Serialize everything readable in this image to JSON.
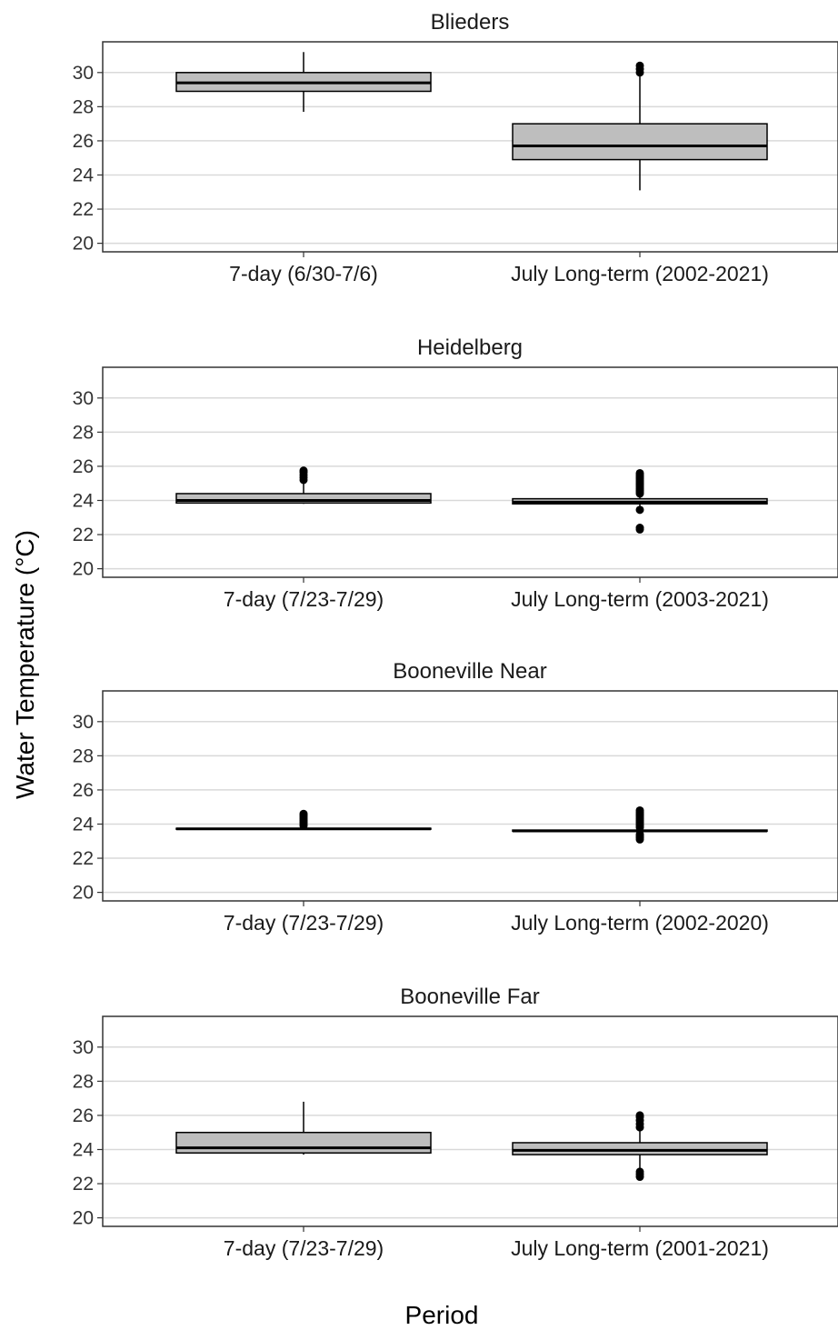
{
  "chart_data": {
    "type": "box",
    "ylabel": "Water Temperature (°C)",
    "xlabel": "Period",
    "ylim": [
      19.5,
      31.8
    ],
    "yticks": [
      20,
      22,
      24,
      26,
      28,
      30
    ],
    "grid": "horizontal",
    "box_fill": "#bebebe",
    "panels": [
      {
        "title": "Blieders",
        "categories": [
          "7-day (6/30-7/6)",
          "July Long-term (2002-2021)"
        ],
        "boxes": [
          {
            "whisker_low": 27.7,
            "q1": 28.9,
            "median": 29.4,
            "q3": 30.0,
            "whisker_high": 31.2,
            "outliers": []
          },
          {
            "whisker_low": 23.1,
            "q1": 24.9,
            "median": 25.7,
            "q3": 27.0,
            "whisker_high": 29.9,
            "outliers": [
              30.0,
              30.2,
              30.4
            ]
          }
        ]
      },
      {
        "title": "Heidelberg",
        "categories": [
          "7-day (7/23-7/29)",
          "July Long-term (2003-2021)"
        ],
        "boxes": [
          {
            "whisker_low": 23.8,
            "q1": 23.85,
            "median": 24.0,
            "q3": 24.4,
            "whisker_high": 25.0,
            "outliers": [
              25.2,
              25.35,
              25.5,
              25.65,
              25.75
            ]
          },
          {
            "whisker_low": 23.6,
            "q1": 23.8,
            "median": 23.9,
            "q3": 24.1,
            "whisker_high": 24.3,
            "outliers": [
              24.4,
              24.5,
              24.6,
              24.7,
              24.8,
              24.9,
              25.0,
              25.1,
              25.2,
              25.3,
              25.4,
              25.5,
              25.6,
              23.45,
              22.3,
              22.4
            ]
          }
        ]
      },
      {
        "title": "Booneville Near",
        "categories": [
          "7-day (7/23-7/29)",
          "July Long-term (2002-2020)"
        ],
        "boxes": [
          {
            "whisker_low": 23.7,
            "q1": 23.7,
            "median": 23.72,
            "q3": 23.75,
            "whisker_high": 23.8,
            "outliers": [
              23.9,
              24.0,
              24.1,
              24.2,
              24.3,
              24.4,
              24.5,
              24.6
            ]
          },
          {
            "whisker_low": 23.5,
            "q1": 23.58,
            "median": 23.6,
            "q3": 23.65,
            "whisker_high": 23.7,
            "outliers": [
              23.8,
              23.9,
              24.0,
              24.1,
              24.2,
              24.3,
              24.4,
              24.5,
              24.6,
              24.7,
              24.8,
              23.4,
              23.3,
              23.2,
              23.1
            ]
          }
        ]
      },
      {
        "title": "Booneville Far",
        "categories": [
          "7-day (7/23-7/29)",
          "July Long-term (2001-2021)"
        ],
        "boxes": [
          {
            "whisker_low": 23.7,
            "q1": 23.8,
            "median": 24.1,
            "q3": 25.0,
            "whisker_high": 26.8,
            "outliers": []
          },
          {
            "whisker_low": 22.9,
            "q1": 23.7,
            "median": 23.95,
            "q3": 24.4,
            "whisker_high": 25.1,
            "outliers": [
              25.3,
              25.5,
              25.7,
              25.9,
              26.0,
              22.4,
              22.55,
              22.7
            ]
          }
        ]
      }
    ]
  }
}
